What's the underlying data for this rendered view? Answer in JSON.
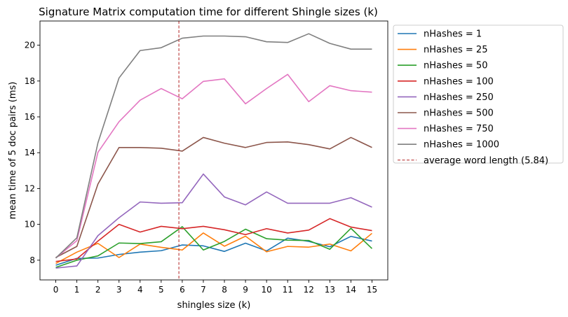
{
  "chart_data": {
    "type": "line",
    "title": "Signature Matrix computation time for different Shingle sizes (k)",
    "xlabel": "shingles size (k)",
    "ylabel": "mean time of 5 doc pairs (ms)",
    "xlim": [
      -0.75,
      15.75
    ],
    "ylim": [
      6.9,
      21.35
    ],
    "xticks": [
      0,
      1,
      2,
      3,
      4,
      5,
      6,
      7,
      8,
      9,
      10,
      11,
      12,
      13,
      14,
      15
    ],
    "yticks": [
      8,
      10,
      12,
      14,
      16,
      18,
      20
    ],
    "x": [
      0,
      1,
      2,
      3,
      4,
      5,
      6,
      7,
      8,
      9,
      10,
      11,
      12,
      13,
      14,
      15
    ],
    "grid": false,
    "legend_position": "outside-right-top",
    "series": [
      {
        "name": "nHashes = 1",
        "color": "#1f77b4",
        "values": [
          7.72,
          8.1,
          8.12,
          8.32,
          8.45,
          8.53,
          8.85,
          8.8,
          8.49,
          8.95,
          8.52,
          9.23,
          9.05,
          8.75,
          9.33,
          9.07
        ]
      },
      {
        "name": "nHashes = 25",
        "color": "#ff7f0e",
        "values": [
          7.82,
          8.45,
          8.94,
          8.15,
          8.9,
          8.72,
          8.57,
          9.52,
          8.78,
          9.34,
          8.47,
          8.77,
          8.73,
          8.9,
          8.52,
          9.5
        ]
      },
      {
        "name": "nHashes = 50",
        "color": "#2ca02c",
        "values": [
          7.6,
          8.0,
          8.24,
          8.96,
          8.93,
          9.03,
          9.87,
          8.57,
          9.05,
          9.73,
          9.2,
          9.12,
          9.1,
          8.61,
          9.78,
          8.65
        ]
      },
      {
        "name": "nHashes = 100",
        "color": "#d62728",
        "values": [
          7.93,
          8.07,
          9.07,
          10.0,
          9.57,
          9.89,
          9.76,
          9.89,
          9.7,
          9.43,
          9.76,
          9.52,
          9.68,
          10.32,
          9.85,
          9.65
        ]
      },
      {
        "name": "nHashes = 250",
        "color": "#9467bd",
        "values": [
          7.56,
          7.68,
          9.37,
          10.37,
          11.25,
          11.18,
          11.21,
          12.81,
          11.53,
          11.09,
          11.81,
          11.18,
          11.18,
          11.18,
          11.49,
          10.96
        ]
      },
      {
        "name": "nHashes = 500",
        "color": "#8c564b",
        "values": [
          8.15,
          8.77,
          12.25,
          14.29,
          14.29,
          14.25,
          14.09,
          14.85,
          14.53,
          14.29,
          14.57,
          14.6,
          14.45,
          14.21,
          14.85,
          14.29
        ]
      },
      {
        "name": "nHashes = 750",
        "color": "#e377c2",
        "values": [
          8.12,
          9.09,
          14.02,
          15.73,
          16.93,
          17.58,
          17.01,
          17.98,
          18.12,
          16.73,
          17.58,
          18.37,
          16.85,
          17.74,
          17.46,
          17.38
        ]
      },
      {
        "name": "nHashes = 1000",
        "color": "#7f7f7f",
        "values": [
          8.12,
          9.25,
          14.55,
          18.17,
          19.7,
          19.86,
          20.39,
          20.51,
          20.51,
          20.47,
          20.19,
          20.15,
          20.64,
          20.1,
          19.78,
          19.78
        ]
      }
    ],
    "vline": {
      "name": "average word length (5.84)",
      "x": 5.84,
      "color": "#b22222",
      "dashed": true
    }
  }
}
